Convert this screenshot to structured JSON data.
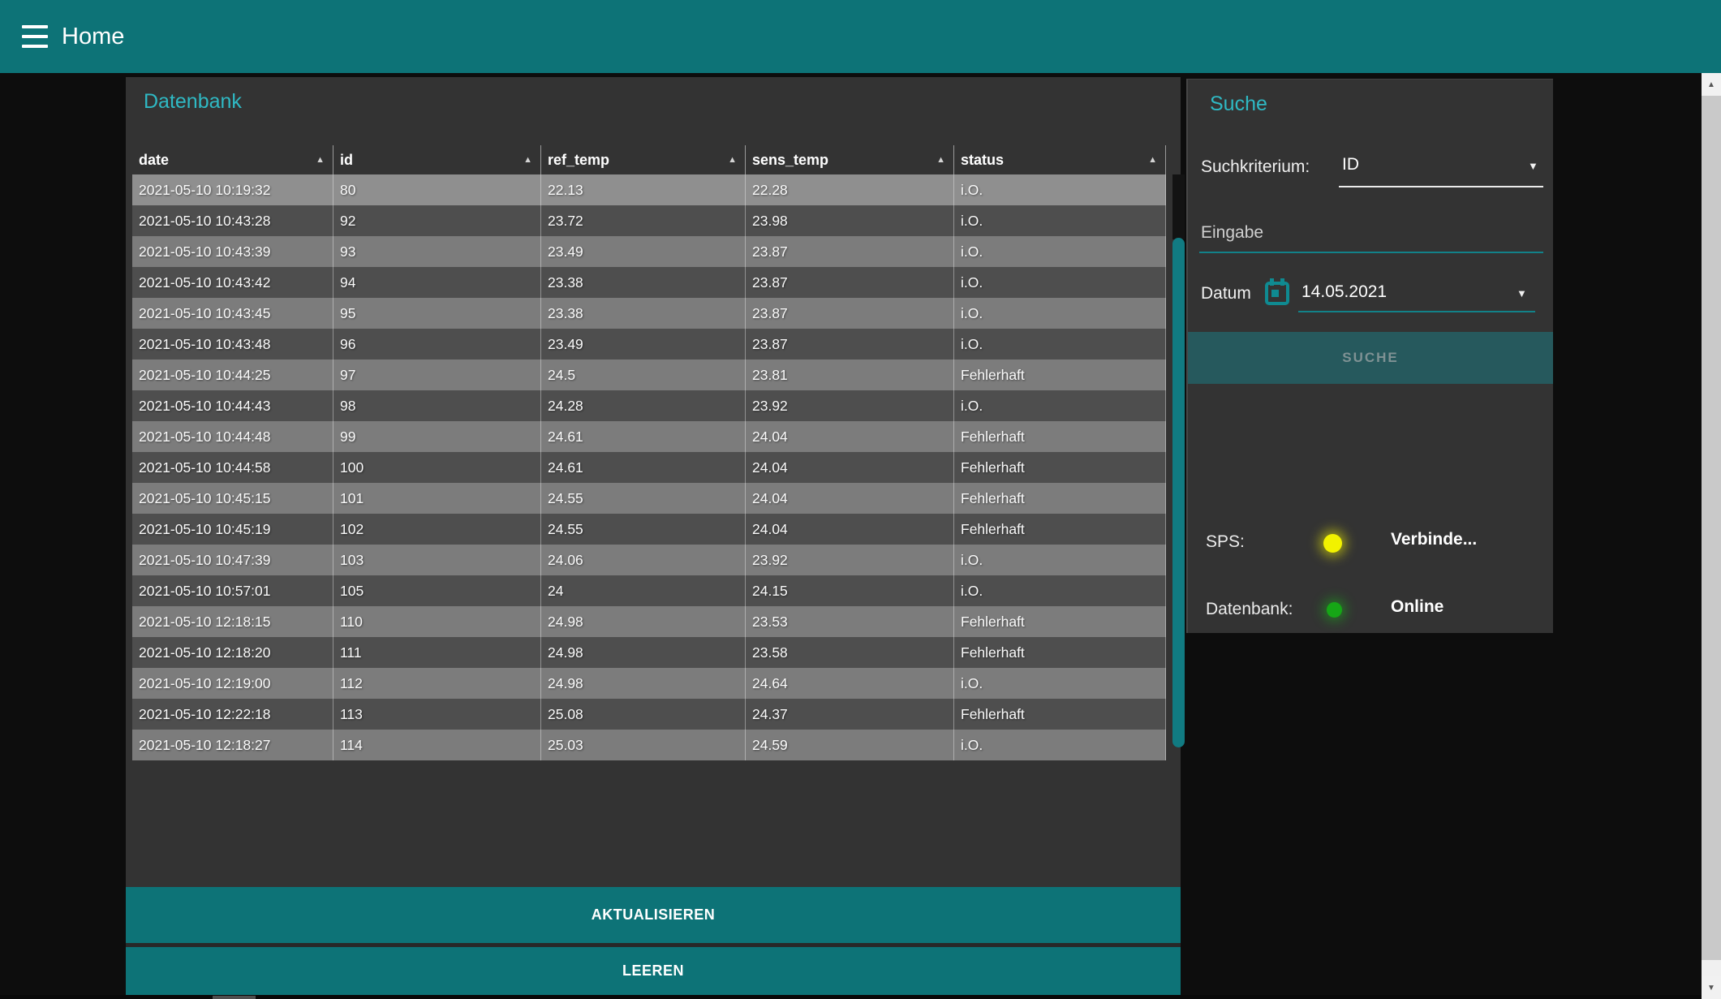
{
  "header": {
    "title": "Home"
  },
  "icons": {
    "sort_asc": "▲",
    "dropdown": "▼",
    "scroll_up": "▲",
    "scroll_down": "▼"
  },
  "datenbank_panel": {
    "title": "Datenbank",
    "table": {
      "columns": [
        "date",
        "id",
        "ref_temp",
        "sens_temp",
        "status"
      ],
      "rows": [
        [
          "2021-05-10 10:19:32",
          "80",
          "22.13",
          "22.28",
          "i.O."
        ],
        [
          "2021-05-10 10:43:28",
          "92",
          "23.72",
          "23.98",
          "i.O."
        ],
        [
          "2021-05-10 10:43:39",
          "93",
          "23.49",
          "23.87",
          "i.O."
        ],
        [
          "2021-05-10 10:43:42",
          "94",
          "23.38",
          "23.87",
          "i.O."
        ],
        [
          "2021-05-10 10:43:45",
          "95",
          "23.38",
          "23.87",
          "i.O."
        ],
        [
          "2021-05-10 10:43:48",
          "96",
          "23.49",
          "23.87",
          "i.O."
        ],
        [
          "2021-05-10 10:44:25",
          "97",
          "24.5",
          "23.81",
          "Fehlerhaft"
        ],
        [
          "2021-05-10 10:44:43",
          "98",
          "24.28",
          "23.92",
          "i.O."
        ],
        [
          "2021-05-10 10:44:48",
          "99",
          "24.61",
          "24.04",
          "Fehlerhaft"
        ],
        [
          "2021-05-10 10:44:58",
          "100",
          "24.61",
          "24.04",
          "Fehlerhaft"
        ],
        [
          "2021-05-10 10:45:15",
          "101",
          "24.55",
          "24.04",
          "Fehlerhaft"
        ],
        [
          "2021-05-10 10:45:19",
          "102",
          "24.55",
          "24.04",
          "Fehlerhaft"
        ],
        [
          "2021-05-10 10:47:39",
          "103",
          "24.06",
          "23.92",
          "i.O."
        ],
        [
          "2021-05-10 10:57:01",
          "105",
          "24",
          "24.15",
          "i.O."
        ],
        [
          "2021-05-10 12:18:15",
          "110",
          "24.98",
          "23.53",
          "Fehlerhaft"
        ],
        [
          "2021-05-10 12:18:20",
          "111",
          "24.98",
          "23.58",
          "Fehlerhaft"
        ],
        [
          "2021-05-10 12:19:00",
          "112",
          "24.98",
          "24.64",
          "i.O."
        ],
        [
          "2021-05-10 12:22:18",
          "113",
          "25.08",
          "24.37",
          "Fehlerhaft"
        ],
        [
          "2021-05-10 12:18:27",
          "114",
          "25.03",
          "24.59",
          "i.O."
        ]
      ]
    },
    "refresh_button": "AKTUALISIEREN",
    "clear_button": "LEEREN"
  },
  "suche_panel": {
    "title": "Suche",
    "suchkriterium_label": "Suchkriterium:",
    "suchkriterium_value": "ID",
    "eingabe_placeholder": "Eingabe",
    "datum_label": "Datum",
    "datum_value": "14.05.2021",
    "suche_button": "SUCHE",
    "status": [
      {
        "label": "SPS:",
        "text": "Verbinde...",
        "color": "#f2f200",
        "glow": "rgba(242,242,0,0.55)"
      },
      {
        "label": "Datenbank:",
        "text": "Online",
        "color": "#16a616",
        "glow": "rgba(22,190,22,0.45)"
      }
    ]
  },
  "colors": {
    "accent_teal": "#0d7377",
    "title_cyan": "#2fb9c4",
    "panel_bg": "#333333",
    "status_yellow": "#f2f200",
    "status_green": "#16a616"
  }
}
